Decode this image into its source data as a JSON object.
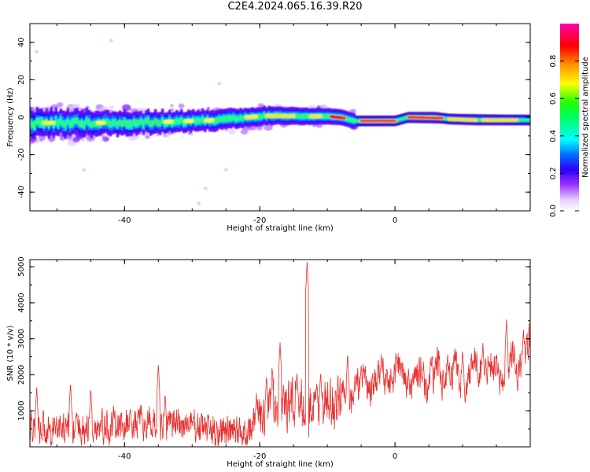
{
  "title": "C2E4.2024.065.16.39.R20",
  "chart_data": [
    {
      "type": "heatmap",
      "title": "",
      "xlabel": "Height of straight line (km)",
      "ylabel": "Frequency (Hz)",
      "xlim": [
        -54,
        20
      ],
      "ylim": [
        -50,
        50
      ],
      "xticks": [
        "-40",
        "-20",
        "0"
      ],
      "yticks": [
        "-40",
        "-20",
        "0",
        "20",
        "40"
      ],
      "ridge_frequency": [
        [
          -54,
          -3
        ],
        [
          -50,
          -3
        ],
        [
          -46,
          -3
        ],
        [
          -42,
          -3
        ],
        [
          -38,
          -3
        ],
        [
          -34,
          -2.5
        ],
        [
          -30,
          -2
        ],
        [
          -26,
          -1.5
        ],
        [
          -22,
          0
        ],
        [
          -18,
          1
        ],
        [
          -14,
          0.5
        ],
        [
          -10,
          0.5
        ],
        [
          -8,
          0
        ],
        [
          -6,
          -2
        ],
        [
          0,
          -2
        ],
        [
          2,
          0
        ],
        [
          6,
          0
        ],
        [
          8,
          -1
        ],
        [
          12,
          -1.5
        ],
        [
          20,
          -1.5
        ]
      ],
      "colorbar": {
        "label": "Normalized spectral amplitude",
        "range": [
          0,
          1
        ],
        "ticks": [
          "0.0",
          "0.2",
          "0.4",
          "0.6",
          "0.8"
        ]
      }
    },
    {
      "type": "line",
      "title": "",
      "xlabel": "Height of straight line (km)",
      "ylabel": "SNR (10 * v/v)",
      "xlim": [
        -54,
        20
      ],
      "ylim": [
        0,
        5200
      ],
      "xticks": [
        "-40",
        "-20",
        "0"
      ],
      "yticks": [
        "1000",
        "2000",
        "3000",
        "4000",
        "5000"
      ],
      "color": "#e8302e",
      "trend": [
        [
          -54,
          500
        ],
        [
          -50,
          550
        ],
        [
          -46,
          500
        ],
        [
          -42,
          550
        ],
        [
          -38,
          650
        ],
        [
          -34,
          600
        ],
        [
          -30,
          600
        ],
        [
          -26,
          450
        ],
        [
          -22,
          400
        ],
        [
          -20,
          900
        ],
        [
          -18,
          1300
        ],
        [
          -16,
          1100
        ],
        [
          -14,
          1300
        ],
        [
          -12,
          1100
        ],
        [
          -10,
          1100
        ],
        [
          -8,
          1300
        ],
        [
          -6,
          1700
        ],
        [
          -4,
          1800
        ],
        [
          -2,
          1900
        ],
        [
          0,
          2100
        ],
        [
          2,
          1800
        ],
        [
          4,
          1900
        ],
        [
          6,
          2000
        ],
        [
          8,
          2100
        ],
        [
          10,
          1900
        ],
        [
          12,
          2200
        ],
        [
          14,
          2200
        ],
        [
          16,
          2100
        ],
        [
          18,
          2400
        ],
        [
          20,
          2600
        ]
      ],
      "peaks": [
        [
          -53,
          1700
        ],
        [
          -48,
          1800
        ],
        [
          -45,
          1650
        ],
        [
          -35,
          2300
        ],
        [
          -34,
          1500
        ],
        [
          -20.5,
          1500
        ],
        [
          -19,
          2000
        ],
        [
          -17,
          2900
        ],
        [
          -14.5,
          2100
        ],
        [
          -13,
          5150
        ],
        [
          -11,
          2100
        ],
        [
          -7,
          2600
        ],
        [
          -5,
          2300
        ],
        [
          2,
          2200
        ],
        [
          6,
          2500
        ],
        [
          10,
          2700
        ],
        [
          13,
          2900
        ],
        [
          16.5,
          3550
        ],
        [
          19,
          3300
        ]
      ]
    }
  ]
}
